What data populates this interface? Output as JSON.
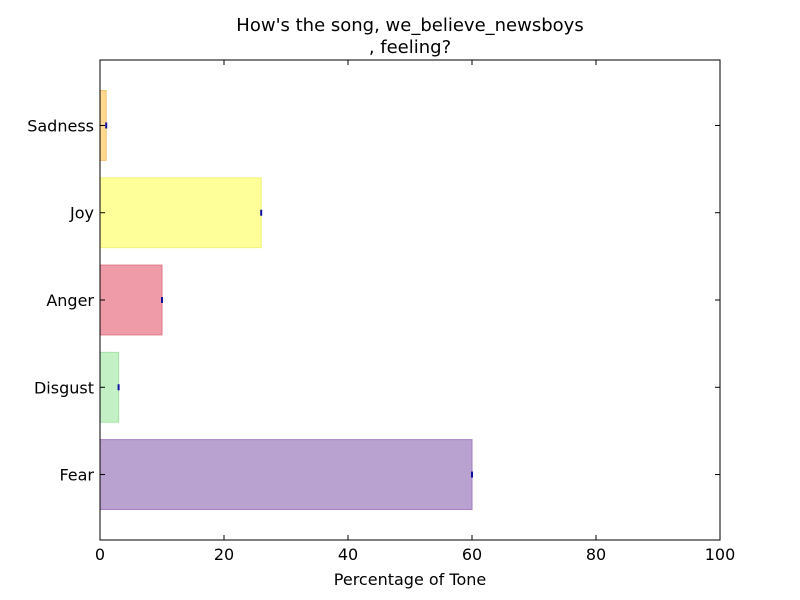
{
  "chart_data": {
    "type": "bar",
    "orientation": "horizontal",
    "title_lines": [
      "How's the song, we_believe_newsboys",
      ", feeling?"
    ],
    "xlabel": "Percentage of Tone",
    "ylabel": "",
    "xlim": [
      0,
      100
    ],
    "xticks": [
      "0",
      "20",
      "40",
      "60",
      "80",
      "100"
    ],
    "categories": [
      "Fear",
      "Disgust",
      "Anger",
      "Joy",
      "Sadness"
    ],
    "values": [
      60,
      3,
      10,
      26,
      1
    ],
    "colors": [
      "#b9a2d0",
      "#c3f0c4",
      "#ef9ca8",
      "#ffff99",
      "#ffd990"
    ],
    "edge_colors": [
      "#a27cc0",
      "#a6e3a8",
      "#e0788a",
      "#f2f27a",
      "#f5c070"
    ],
    "marker_color": "#1010a0",
    "grid": false,
    "legend": "none"
  }
}
